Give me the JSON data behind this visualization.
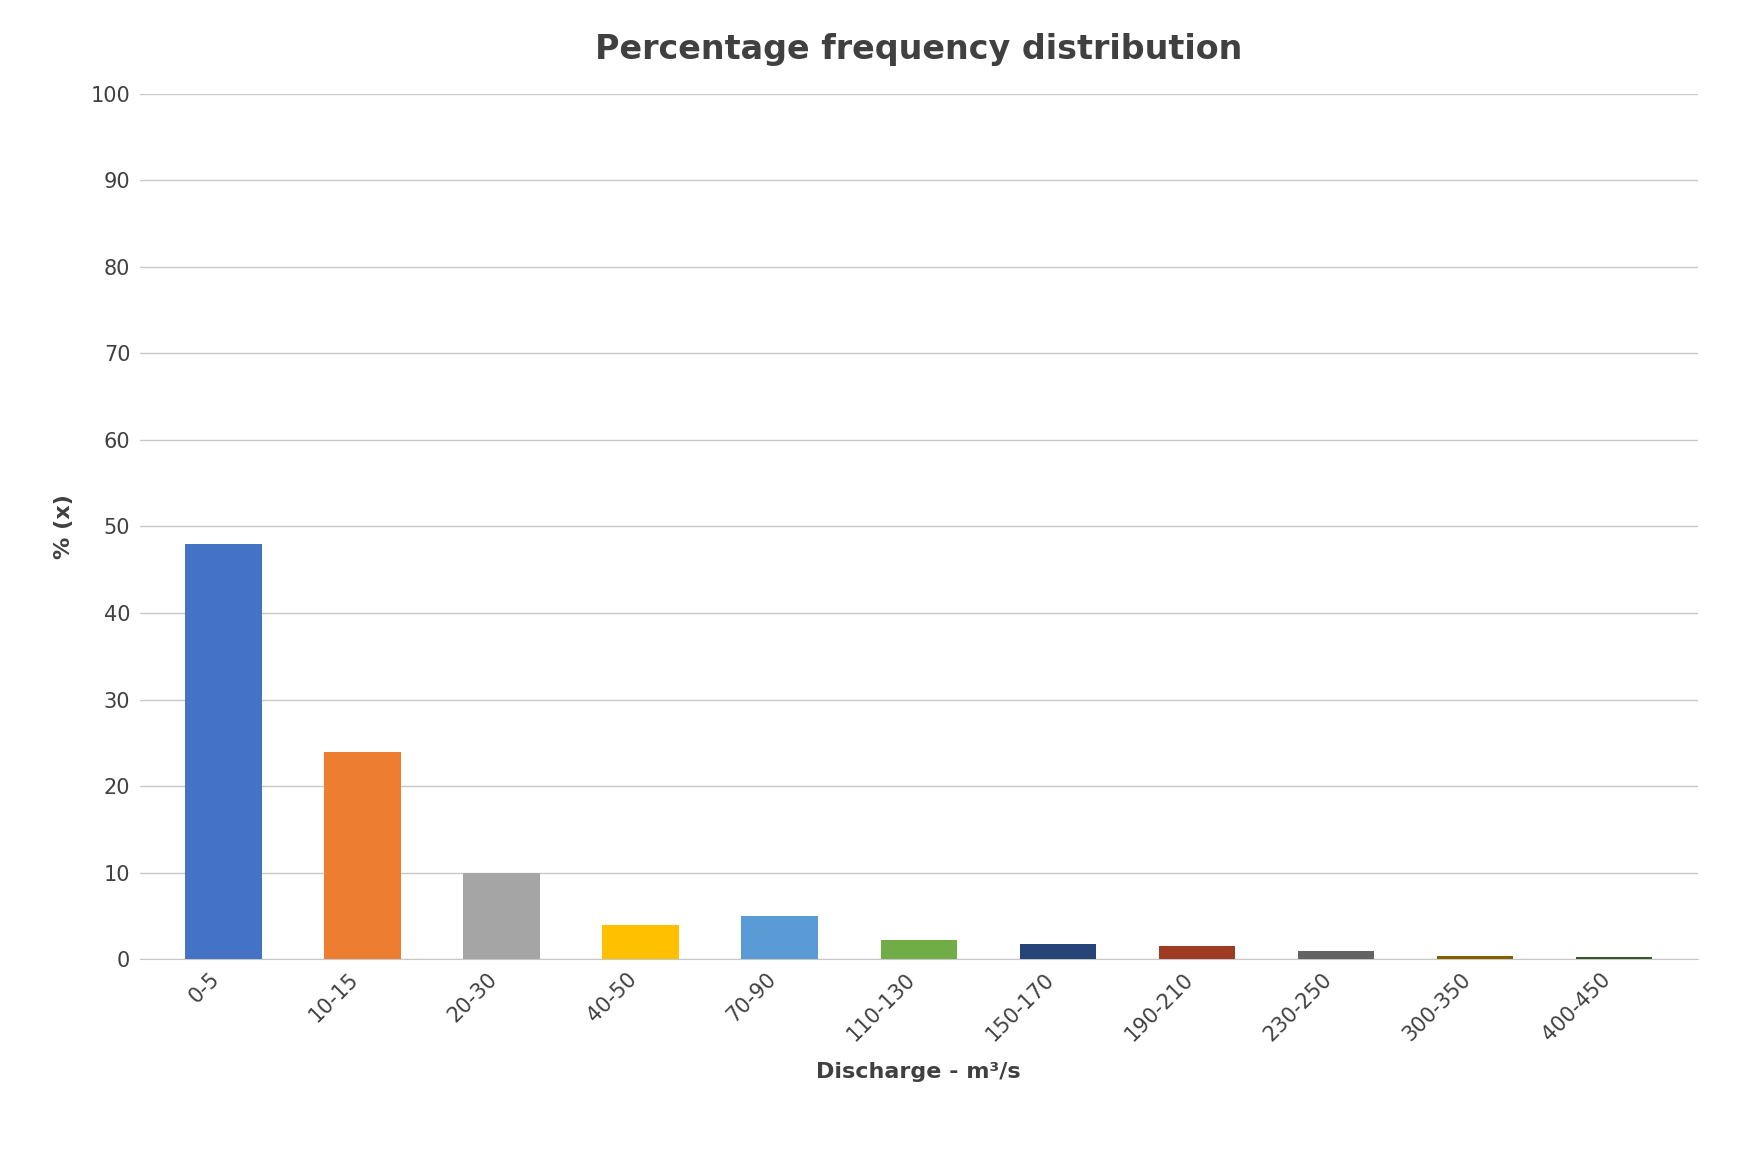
{
  "title": "Percentage frequency distribution",
  "xlabel": "Discharge - m³/s",
  "ylabel": "% (x)",
  "categories": [
    "0-5",
    "10-15",
    "20-30",
    "40-50",
    "70-90",
    "110-130",
    "150-170",
    "190-210",
    "230-250",
    "300-350",
    "400-450"
  ],
  "values": [
    48,
    24,
    10,
    4,
    5,
    2.2,
    1.8,
    1.5,
    1.0,
    0.4,
    0.3
  ],
  "bar_colors": [
    "#4472C4",
    "#ED7D31",
    "#A5A5A5",
    "#FFC000",
    "#5B9BD5",
    "#70AD47",
    "#264478",
    "#9E3B25",
    "#636363",
    "#806000",
    "#375623"
  ],
  "ylim": [
    0,
    100
  ],
  "yticks": [
    0,
    10,
    20,
    30,
    40,
    50,
    60,
    70,
    80,
    90,
    100
  ],
  "background_color": "#FFFFFF",
  "grid_color": "#C8C8C8",
  "title_fontsize": 24,
  "axis_label_fontsize": 16,
  "tick_fontsize": 15
}
